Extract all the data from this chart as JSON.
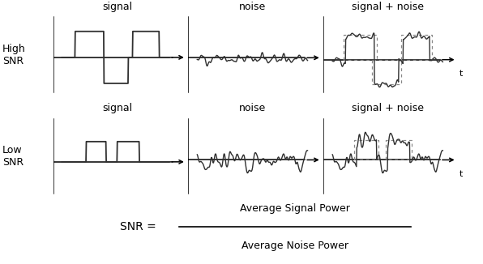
{
  "bg_color": "#ffffff",
  "text_color": "#000000",
  "line_color": "#000000",
  "signal_color": "#303030",
  "dotted_color": "#888888",
  "title_fontsize": 9,
  "label_fontsize": 9,
  "row_labels": [
    "High\nSNR",
    "Low\nSNR"
  ],
  "col_titles": [
    "signal",
    "noise",
    "signal + noise"
  ],
  "snr_formula_num": "Average Signal Power",
  "snr_formula_den": "Average Noise Power",
  "snr_eq": "SNR = "
}
